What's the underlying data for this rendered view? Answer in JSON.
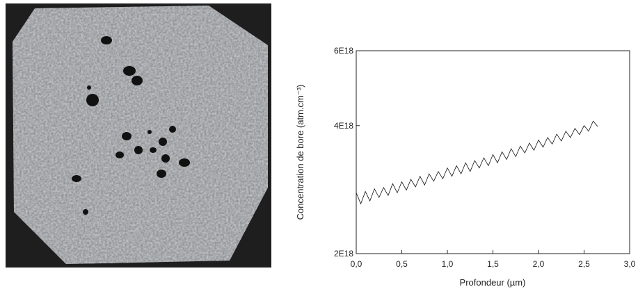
{
  "chart_data": {
    "type": "line",
    "xlabel": "Profondeur (µm)",
    "ylabel": "Concentration de bore (atm.cm⁻³)",
    "x": [
      0,
      0.05,
      0.1,
      0.15,
      0.2,
      0.25,
      0.3,
      0.35,
      0.4,
      0.45,
      0.5,
      0.55,
      0.6,
      0.65,
      0.7,
      0.75,
      0.8,
      0.85,
      0.9,
      0.95,
      1.0,
      1.05,
      1.1,
      1.15,
      1.2,
      1.25,
      1.3,
      1.35,
      1.4,
      1.45,
      1.5,
      1.55,
      1.6,
      1.65,
      1.7,
      1.75,
      1.8,
      1.85,
      1.9,
      1.95,
      2.0,
      2.05,
      2.1,
      2.15,
      2.2,
      2.25,
      2.3,
      2.35,
      2.4,
      2.45,
      2.5,
      2.55,
      2.6,
      2.65
    ],
    "values": [
      2.78e+18,
      2.62e+18,
      2.8e+18,
      2.66e+18,
      2.84e+18,
      2.71e+18,
      2.86e+18,
      2.74e+18,
      2.92e+18,
      2.78e+18,
      2.95e+18,
      2.82e+18,
      2.99e+18,
      2.87e+18,
      3.04e+18,
      2.9e+18,
      3.08e+18,
      2.96e+18,
      3.12e+18,
      3e+18,
      3.18e+18,
      3.04e+18,
      3.22e+18,
      3.08e+18,
      3.27e+18,
      3.12e+18,
      3.31e+18,
      3.18e+18,
      3.36e+18,
      3.22e+18,
      3.42e+18,
      3.27e+18,
      3.47e+18,
      3.33e+18,
      3.53e+18,
      3.38e+18,
      3.58e+18,
      3.45e+18,
      3.64e+18,
      3.5e+18,
      3.7e+18,
      3.56e+18,
      3.75e+18,
      3.62e+18,
      3.82e+18,
      3.68e+18,
      3.88e+18,
      3.75e+18,
      3.94e+18,
      3.81e+18,
      4e+18,
      3.88e+18,
      4.1e+18,
      3.98e+18
    ],
    "color": "#111111",
    "xlim": [
      0,
      3
    ],
    "xticks": [
      {
        "value": 0,
        "label": "0,0"
      },
      {
        "value": 0.5,
        "label": "0,5"
      },
      {
        "value": 1,
        "label": "1,0"
      },
      {
        "value": 1.5,
        "label": "1,5"
      },
      {
        "value": 2,
        "label": "2,0"
      },
      {
        "value": 2.5,
        "label": "2,5"
      },
      {
        "value": 3,
        "label": "3,0"
      }
    ],
    "ylim": [
      2e+18,
      6e+18
    ],
    "yticks": [
      {
        "value": 2e+18,
        "label": "2E18"
      },
      {
        "value": 4e+18,
        "label": "4E18"
      },
      {
        "value": 6e+18,
        "label": "6E18"
      }
    ],
    "yscale": "log"
  }
}
